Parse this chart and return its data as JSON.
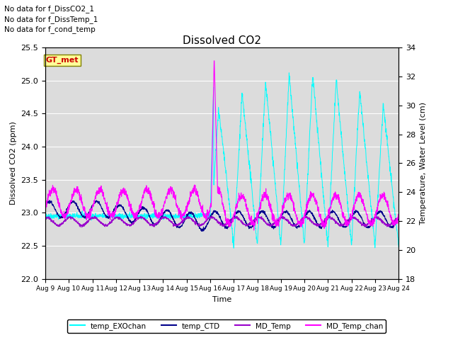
{
  "title": "Dissolved CO2",
  "ylabel_left": "Dissolved CO2 (ppm)",
  "ylabel_right": "Temperature, Water Level (cm)",
  "xlabel": "Time",
  "ylim_left": [
    22.0,
    25.5
  ],
  "ylim_right": [
    18,
    34
  ],
  "yticks_left": [
    22.0,
    22.5,
    23.0,
    23.5,
    24.0,
    24.5,
    25.0,
    25.5
  ],
  "yticks_right": [
    18,
    20,
    22,
    24,
    26,
    28,
    30,
    32,
    34
  ],
  "xtick_labels": [
    "Aug 9",
    "Aug 10",
    "Aug 11",
    "Aug 12",
    "Aug 13",
    "Aug 14",
    "Aug 15",
    "Aug 16",
    "Aug 17",
    "Aug 18",
    "Aug 19",
    "Aug 20",
    "Aug 21",
    "Aug 22",
    "Aug 23",
    "Aug 24"
  ],
  "no_data_texts": [
    "No data for f_DissCO2_1",
    "No data for f_DissTemp_1",
    "No data for f_cond_temp"
  ],
  "gt_met_label": "GT_met",
  "gt_met_color": "#cc0000",
  "gt_met_bg": "#ffff99",
  "background_color": "#dcdcdc",
  "colors": {
    "temp_EXOchan": "#00ffff",
    "temp_CTD": "#00008b",
    "MD_Temp": "#9900cc",
    "MD_Temp_chan": "#ff00ff"
  },
  "legend_labels": [
    "temp_EXOchan",
    "temp_CTD",
    "MD_Temp",
    "MD_Temp_chan"
  ]
}
